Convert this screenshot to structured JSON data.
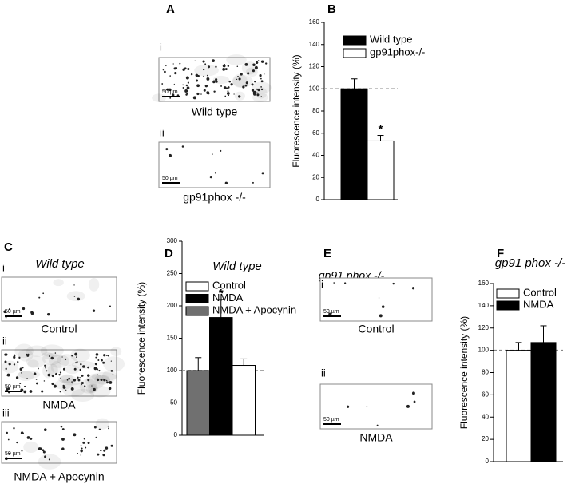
{
  "figure": {
    "panel_labels": [
      "A",
      "B",
      "C",
      "D",
      "E",
      "F"
    ],
    "image_titles": [
      "Wild type",
      "gp91 phox -/-"
    ],
    "images": [
      {
        "label": "i",
        "caption": "Wild type",
        "scale": "50 µm"
      },
      {
        "label": "ii",
        "caption": "gp91phox -/-",
        "scale": "50 µm"
      },
      {
        "label": "i",
        "caption": "Control",
        "scale": "50 µm"
      },
      {
        "label": "ii",
        "caption": "NMDA",
        "scale": "50 µm"
      },
      {
        "label": "iii",
        "caption": "NMDA + Apocynin",
        "scale": "50 µm"
      },
      {
        "label": "i",
        "caption": "Control",
        "scale": "50 µm"
      },
      {
        "label": "ii",
        "caption": "NMDA",
        "scale": "50 µm"
      }
    ]
  },
  "chart_data": [
    {
      "type": "bar",
      "ylabel": "Fluorescence intensity (%)",
      "categories": [
        null
      ],
      "series": [
        {
          "name": "Wild type",
          "color": "#000000",
          "values": [
            100
          ],
          "errors": [
            9
          ]
        },
        {
          "name": "gp91phox-/-",
          "color": "#ffffff",
          "values": [
            53
          ],
          "errors": [
            5
          ]
        }
      ],
      "ylim": [
        0,
        160
      ],
      "yticks": [
        0,
        20,
        40,
        60,
        80,
        100,
        120,
        140,
        160
      ],
      "hline": 100,
      "annotations": [
        {
          "text": "*",
          "series": 1
        }
      ]
    },
    {
      "type": "bar",
      "title": "Wild type",
      "ylabel": "Fluorescence intensity (%)",
      "categories": [
        null
      ],
      "series": [
        {
          "name": "Control",
          "color": "#ffffff",
          "values": [
            108
          ],
          "errors": [
            10
          ]
        },
        {
          "name": "NMDA",
          "color": "#000000",
          "values": [
            182
          ],
          "errors": [
            28
          ]
        },
        {
          "name": "NMDA + Apocynin",
          "color": "#707070",
          "values": [
            100
          ],
          "errors": [
            20
          ]
        }
      ],
      "bars_reversed": true,
      "ylim": [
        0,
        300
      ],
      "yticks": [
        0,
        50,
        100,
        150,
        200,
        250,
        300
      ],
      "hline": 100,
      "annotations": [
        {
          "text": "*",
          "series": 1
        }
      ]
    },
    {
      "type": "bar",
      "title": "gp91 phox -/-",
      "ylabel": "Fluorescence intensity (%)",
      "categories": [
        null
      ],
      "series": [
        {
          "name": "Control",
          "color": "#ffffff",
          "values": [
            100
          ],
          "errors": [
            7
          ]
        },
        {
          "name": "NMDA",
          "color": "#000000",
          "values": [
            107
          ],
          "errors": [
            15
          ]
        }
      ],
      "ylim": [
        0,
        160
      ],
      "yticks": [
        0,
        20,
        40,
        60,
        80,
        100,
        120,
        140,
        160
      ],
      "hline": 100,
      "annotations": []
    }
  ]
}
